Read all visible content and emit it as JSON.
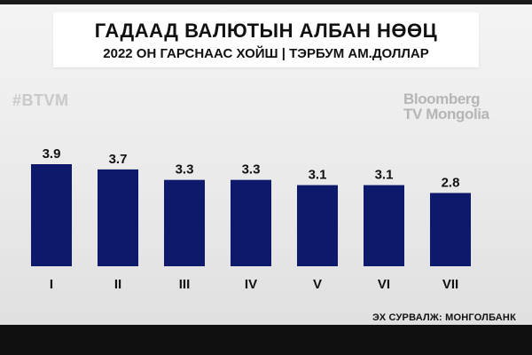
{
  "header": {
    "title": "ГАДААД ВАЛЮТЫН АЛБАН НӨӨЦ",
    "subtitle": "2022 ОН ГАРСНААС ХОЙШ | ТЭРБУМ АМ.ДОЛЛАР"
  },
  "hashtag": "#BTVM",
  "logo": {
    "line1": "Bloomberg",
    "line2": "TV Mongolia"
  },
  "source": "ЭХ СУРВАЛЖ: МОНГОЛБАНК",
  "colors": {
    "bar": "#0d1a6b",
    "text": "#111111",
    "footer": "#101010"
  },
  "chart_data": {
    "type": "bar",
    "categories": [
      "I",
      "II",
      "III",
      "IV",
      "V",
      "VI",
      "VII"
    ],
    "values": [
      3.9,
      3.7,
      3.3,
      3.3,
      3.1,
      3.1,
      2.8
    ],
    "value_labels": [
      "3.9",
      "3.7",
      "3.3",
      "3.3",
      "3.1",
      "3.1",
      "2.8"
    ],
    "title": "ГАДААД ВАЛЮТЫН АЛБАН НӨӨЦ",
    "subtitle": "2022 ОН ГАРСНААС ХОЙШ | ТЭРБУМ АМ.ДОЛЛАР",
    "xlabel": "",
    "ylabel": "",
    "ylim": [
      0,
      3.9
    ],
    "grid": false,
    "legend": "none"
  }
}
